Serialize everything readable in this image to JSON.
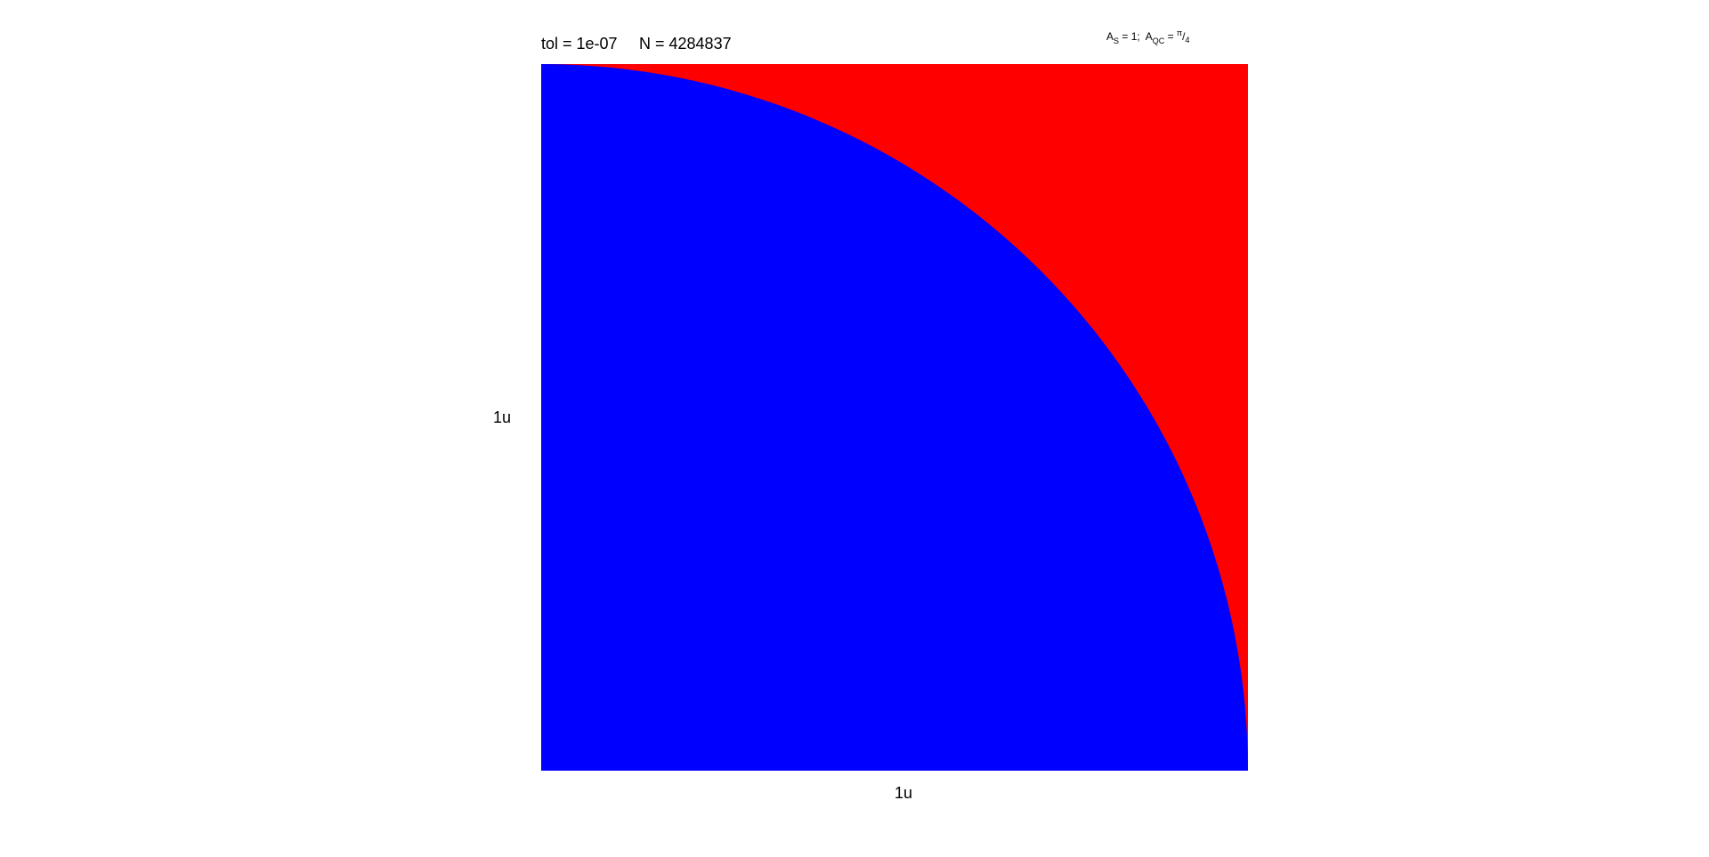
{
  "chart_data": {
    "type": "scatter",
    "description_note": "",
    "title": {
      "tol_label": "tol = 1e-07",
      "n_label": "N = 4284837"
    },
    "tol": "1e-07",
    "N": 4284837,
    "annotation": {
      "as_prefix": "A",
      "as_sub": "S",
      "as_rest": " = 1;  ",
      "aqc_prefix": "A",
      "aqc_sub": "QC",
      "aqc_eq": " = ",
      "pi": "π",
      "slash": "/",
      "four": "4"
    },
    "xlabel": "1u",
    "ylabel": "1u",
    "xlim": [
      0,
      1
    ],
    "ylim": [
      0,
      1
    ],
    "grid": false,
    "regions": [
      {
        "name": "",
        "color": "#0000ff",
        "area": 0.7853981634
      },
      {
        "name": "",
        "color": "#ff0000",
        "area": 0.2146018366
      }
    ],
    "quarter_circle_radius": 1
  }
}
